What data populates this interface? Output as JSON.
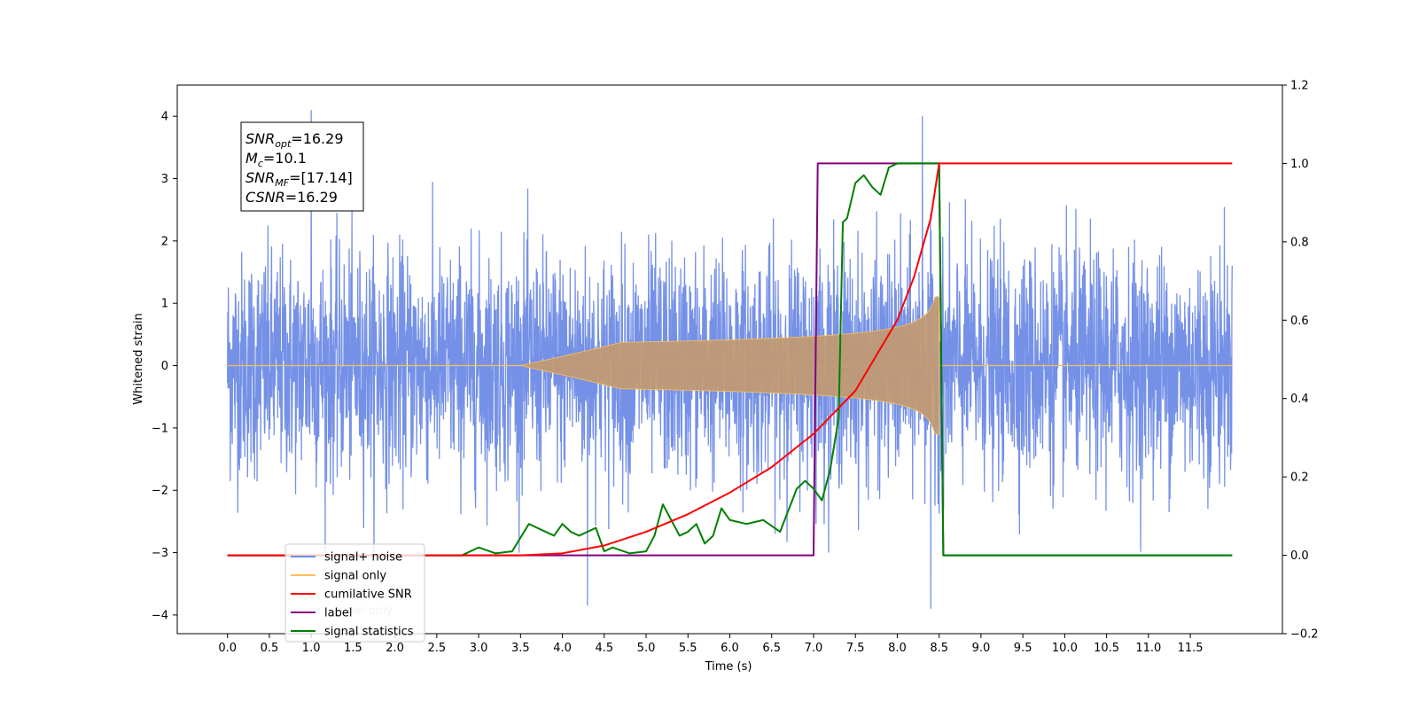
{
  "chart_data": {
    "type": "line",
    "xlabel": "Time (s)",
    "ylabel": "Whitened strain",
    "xlim": [
      -0.6,
      12.6
    ],
    "ylim": [
      -4.3,
      4.5
    ],
    "y2lim": [
      -0.2,
      1.2
    ],
    "x_ticks": [
      "0.0",
      "0.5",
      "1.0",
      "1.5",
      "2.0",
      "2.5",
      "3.0",
      "3.5",
      "4.0",
      "4.5",
      "5.0",
      "5.5",
      "6.0",
      "6.5",
      "7.0",
      "7.5",
      "8.0",
      "8.5",
      "9.0",
      "9.5",
      "10.0",
      "10.5",
      "11.0",
      "11.5"
    ],
    "y_ticks": [
      "−4",
      "−3",
      "−2",
      "−1",
      "0",
      "1",
      "2",
      "3",
      "4"
    ],
    "y2_ticks": [
      "−0.2",
      "0.0",
      "0.2",
      "0.4",
      "0.6",
      "0.8",
      "1.0",
      "1.2"
    ],
    "noise_envelope": {
      "t": [
        0,
        12
      ],
      "typical_peak": 2.2,
      "extremes": [
        {
          "t": 1.0,
          "v": 4.1
        },
        {
          "t": 8.3,
          "v": 4.0
        },
        {
          "t": 8.4,
          "v": -3.9
        },
        {
          "t": 4.3,
          "v": -3.85
        }
      ]
    },
    "chirp": {
      "t_start": 3.5,
      "t_merger": 8.5,
      "peak_amplitude": 1.1
    },
    "cumulative_snr": {
      "t": [
        0,
        3.5,
        4.0,
        4.5,
        5.0,
        5.5,
        6.0,
        6.5,
        7.0,
        7.5,
        8.0,
        8.2,
        8.4,
        8.5,
        12.0
      ],
      "v": [
        0,
        0,
        0.005,
        0.025,
        0.06,
        0.105,
        0.16,
        0.225,
        0.31,
        0.42,
        0.6,
        0.71,
        0.86,
        1.0,
        1.0
      ]
    },
    "label": {
      "t": [
        0,
        7.0,
        7.05,
        8.5,
        8.55,
        12.0
      ],
      "v": [
        0,
        0,
        1.0,
        1.0,
        0,
        0
      ]
    },
    "signal_statistics": {
      "t": [
        0,
        2.8,
        3.0,
        3.2,
        3.4,
        3.6,
        3.7,
        3.8,
        3.9,
        4.0,
        4.1,
        4.2,
        4.4,
        4.5,
        4.6,
        4.8,
        5.0,
        5.1,
        5.2,
        5.3,
        5.4,
        5.5,
        5.6,
        5.7,
        5.8,
        5.9,
        6.0,
        6.2,
        6.4,
        6.6,
        6.8,
        6.9,
        7.0,
        7.1,
        7.2,
        7.3,
        7.35,
        7.4,
        7.5,
        7.6,
        7.7,
        7.8,
        7.9,
        8.0,
        8.1,
        8.5,
        8.55,
        12.0
      ],
      "v": [
        0,
        0,
        0.02,
        0.005,
        0.01,
        0.08,
        0.07,
        0.06,
        0.05,
        0.08,
        0.06,
        0.05,
        0.07,
        0.01,
        0.02,
        0.005,
        0.01,
        0.05,
        0.13,
        0.09,
        0.05,
        0.06,
        0.08,
        0.03,
        0.05,
        0.12,
        0.09,
        0.08,
        0.09,
        0.06,
        0.17,
        0.19,
        0.17,
        0.14,
        0.22,
        0.35,
        0.85,
        0.86,
        0.95,
        0.97,
        0.94,
        0.92,
        0.99,
        1.0,
        1.0,
        1.0,
        0,
        0
      ]
    },
    "annotation": {
      "lines": [
        {
          "main": "SNR",
          "sub": "opt",
          "rest": "=16.29"
        },
        {
          "main": "M",
          "sub": "c",
          "rest": "=10.1"
        },
        {
          "main": "SNR",
          "sub": "MF",
          "rest": "=[17.14]"
        },
        {
          "main": "CSNR",
          "sub": "",
          "rest": "=16.29"
        }
      ]
    },
    "legend": {
      "placement": "lower-left",
      "entries": [
        {
          "name": "signal+ noise",
          "color": "#6e8be6"
        },
        {
          "name": "signal only",
          "color": "#ffbf5a"
        },
        {
          "name": "cumilative SNR",
          "color": "#ff0000"
        },
        {
          "name": "label",
          "color": "#800080"
        },
        {
          "name": "signal statistics",
          "color": "#008000"
        }
      ],
      "hidden_text": "label only"
    },
    "colors": {
      "noise": "#6e8be6",
      "signal": "#ffbf5a",
      "chirp_fill": "#c09a74",
      "cumulative_snr": "#ff0000",
      "label": "#800080",
      "signal_statistics": "#008000"
    }
  }
}
